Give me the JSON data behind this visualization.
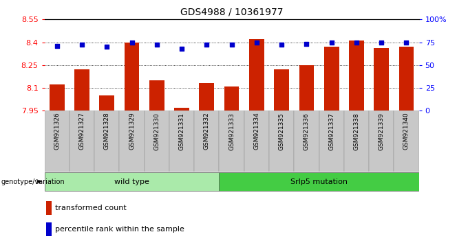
{
  "title": "GDS4988 / 10361977",
  "samples": [
    "GSM921326",
    "GSM921327",
    "GSM921328",
    "GSM921329",
    "GSM921330",
    "GSM921331",
    "GSM921332",
    "GSM921333",
    "GSM921334",
    "GSM921335",
    "GSM921336",
    "GSM921337",
    "GSM921338",
    "GSM921339",
    "GSM921340"
  ],
  "bar_values": [
    8.12,
    8.22,
    8.05,
    8.4,
    8.15,
    7.97,
    8.13,
    8.11,
    8.42,
    8.22,
    8.25,
    8.37,
    8.41,
    8.36,
    8.37
  ],
  "percentile_values": [
    71,
    72,
    70,
    75,
    72,
    68,
    72,
    72,
    75,
    72,
    73,
    75,
    75,
    75,
    75
  ],
  "ylim": [
    7.95,
    8.55
  ],
  "yticks": [
    7.95,
    8.1,
    8.25,
    8.4,
    8.55
  ],
  "ytick_labels": [
    "7.95",
    "8.1",
    "8.25",
    "8.4",
    "8.55"
  ],
  "right_ylim": [
    0,
    100
  ],
  "right_yticks": [
    0,
    25,
    50,
    75,
    100
  ],
  "right_ytick_labels": [
    "0",
    "25",
    "50",
    "75",
    "100%"
  ],
  "bar_color": "#cc2200",
  "dot_color": "#0000cc",
  "tick_area_color": "#c8c8c8",
  "wild_type_indices": [
    0,
    1,
    2,
    3,
    4,
    5,
    6
  ],
  "mutation_indices": [
    7,
    8,
    9,
    10,
    11,
    12,
    13,
    14
  ],
  "wild_type_label": "wild type",
  "mutation_label": "Srlp5 mutation",
  "group_bar_color": "#aaeaaa",
  "mutation_bar_color": "#44cc44",
  "legend_bar_label": "transformed count",
  "legend_dot_label": "percentile rank within the sample",
  "genotype_label": "genotype/variation"
}
